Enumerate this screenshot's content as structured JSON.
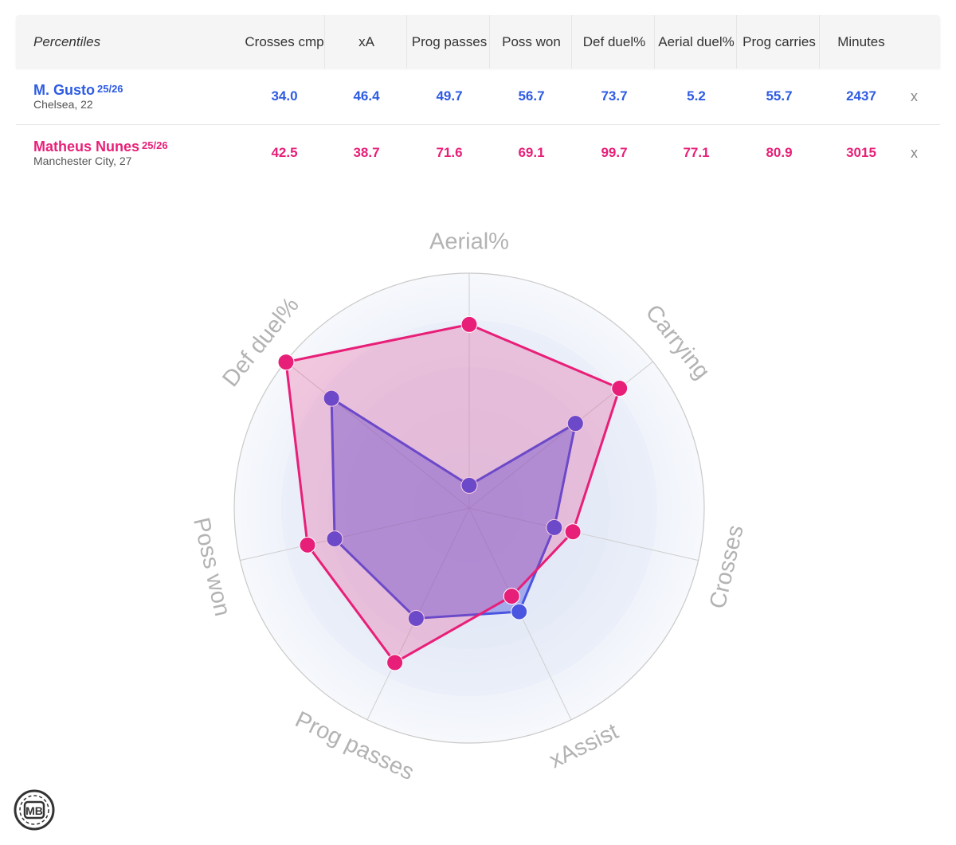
{
  "table": {
    "header_label": "Percentiles",
    "columns": [
      "Crosses cmp",
      "xA",
      "Prog passes",
      "Poss won",
      "Def duel%",
      "Aerial duel%",
      "Prog carries",
      "Minutes"
    ],
    "remove_label": "x",
    "players": [
      {
        "name": "M. Gusto",
        "season": "25/26",
        "sub": "Chelsea, 22",
        "values": [
          "34.0",
          "46.4",
          "49.7",
          "56.7",
          "73.7",
          "5.2",
          "55.7",
          "2437"
        ],
        "color": "#2d5be3"
      },
      {
        "name": "Matheus Nunes",
        "season": "25/26",
        "sub": "Manchester City, 27",
        "values": [
          "42.5",
          "38.7",
          "71.6",
          "69.1",
          "99.7",
          "77.1",
          "80.9",
          "3015"
        ],
        "color": "#e81f78"
      }
    ]
  },
  "chart_data": {
    "type": "radar",
    "axes": [
      "Aerial%",
      "Carrying",
      "Crosses",
      "xAssist",
      "Prog passes",
      "Poss won",
      "Def duel%"
    ],
    "range": [
      0,
      100
    ],
    "series": [
      {
        "name": "M. Gusto",
        "color": "#4a55e0",
        "values": [
          5.2,
          55.7,
          34.0,
          46.4,
          49.7,
          56.7,
          73.7
        ]
      },
      {
        "name": "Matheus Nunes",
        "color": "#e81f78",
        "values": [
          77.1,
          80.9,
          42.5,
          38.7,
          71.6,
          69.1,
          99.7
        ]
      }
    ]
  },
  "logo": {
    "text": "MB"
  }
}
